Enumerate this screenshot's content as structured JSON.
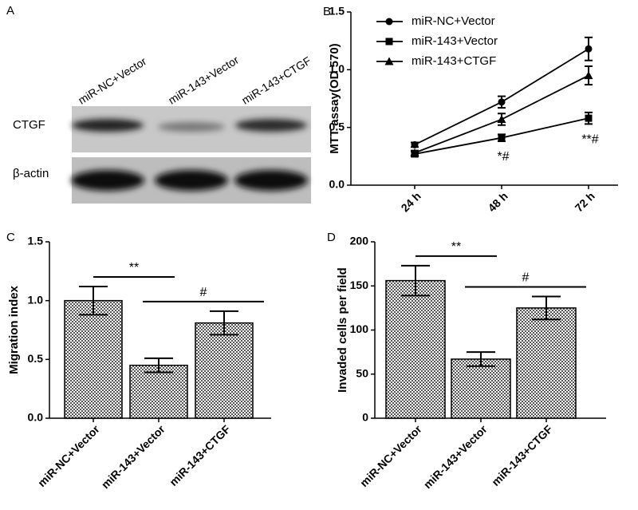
{
  "blot": {
    "panel_label": "A",
    "lanes": [
      "miR-NC+Vector",
      "miR-143+Vector",
      "miR-143+CTGF"
    ],
    "rows": [
      "CTGF",
      "β-actin"
    ]
  },
  "chart_data": [
    {
      "type": "line",
      "panel_label": "B",
      "y_label": "MTT assay(OD 570)",
      "categories": [
        "24 h",
        "48 h",
        "72 h"
      ],
      "series": [
        {
          "name": "miR-NC+Vector",
          "color": "#000000",
          "marker": "circle",
          "values": [
            0.35,
            0.72,
            1.18
          ],
          "errors": [
            0.02,
            0.05,
            0.1
          ]
        },
        {
          "name": "miR-143+Vector",
          "color": "#000000",
          "marker": "square",
          "values": [
            0.27,
            0.41,
            0.58
          ],
          "errors": [
            0.02,
            0.03,
            0.05
          ]
        },
        {
          "name": "miR-143+CTGF",
          "color": "#000000",
          "marker": "triangle",
          "values": [
            0.28,
            0.57,
            0.95
          ],
          "errors": [
            0.02,
            0.05,
            0.08
          ]
        }
      ],
      "annotations": [
        "*#",
        "**#"
      ],
      "ylim": [
        0,
        1.5
      ],
      "yticks": [
        {
          "value": 0,
          "label": "0.0"
        },
        {
          "value": 0.5,
          "label": "0.5"
        },
        {
          "value": 1,
          "label": "1.0"
        },
        {
          "value": 1.5,
          "label": "1.5"
        }
      ],
      "legend": "upper left"
    },
    {
      "type": "bar",
      "panel_label": "C",
      "y_label": "Migration index",
      "color": "#000000",
      "categories": [
        "miR-NC+Vector",
        "miR-143+Vector",
        "miR-143+CTGF"
      ],
      "values": [
        1.0,
        0.45,
        0.81
      ],
      "errors": [
        0.12,
        0.06,
        0.1
      ],
      "annotations": [
        "**",
        "#"
      ],
      "ylim": [
        0,
        1.5
      ],
      "yticks": [
        {
          "value": 0,
          "label": "0.0"
        },
        {
          "value": 0.5,
          "label": "0.5"
        },
        {
          "value": 1,
          "label": "1.0"
        },
        {
          "value": 1.5,
          "label": "1.5"
        }
      ]
    },
    {
      "type": "bar",
      "panel_label": "D",
      "y_label": "Invaded cells per field",
      "color": "#000000",
      "categories": [
        "miR-NC+Vector",
        "miR-143+Vector",
        "miR-143+CTGF"
      ],
      "values": [
        156,
        67,
        125
      ],
      "errors": [
        17,
        8,
        13
      ],
      "annotations": [
        "**",
        "#"
      ],
      "ylim": [
        0,
        200
      ],
      "yticks": [
        0,
        50,
        100,
        150,
        200
      ]
    }
  ]
}
